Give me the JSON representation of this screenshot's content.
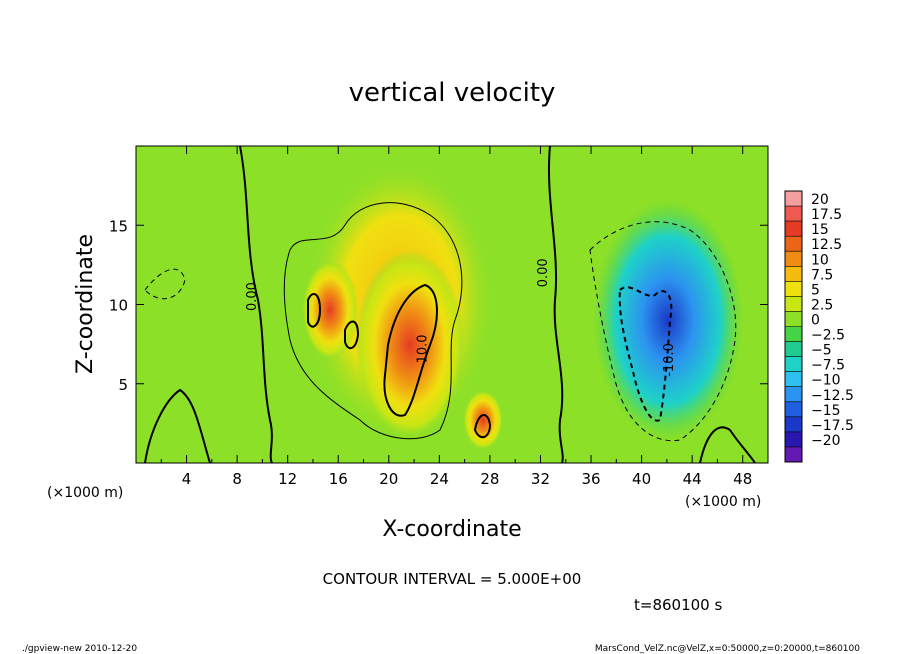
{
  "chart_data": {
    "type": "heatmap",
    "title": "vertical velocity",
    "xlabel": "X-coordinate",
    "ylabel": "Z-coordinate",
    "x_unit_label": "(×1000 m)",
    "y_unit_label": "(×1000 m)",
    "xlim": [
      0,
      50
    ],
    "ylim": [
      0,
      20
    ],
    "x_ticks": [
      4,
      8,
      12,
      16,
      20,
      24,
      28,
      32,
      36,
      40,
      44,
      48
    ],
    "y_ticks": [
      5,
      10,
      15
    ],
    "colorbar": {
      "levels": [
        "20",
        "17.5",
        "15",
        "12.5",
        "10",
        "7.5",
        "5",
        "2.5",
        "0",
        "−2.5",
        "−5",
        "−7.5",
        "−10",
        "−12.5",
        "−15",
        "−17.5",
        "−20"
      ],
      "colors": [
        "#f5a0a0",
        "#ee5a50",
        "#e63c24",
        "#ec6418",
        "#f08c14",
        "#f5bc10",
        "#f0e010",
        "#c8e614",
        "#8ce028",
        "#46d446",
        "#20cc90",
        "#1ed2c8",
        "#30c0f0",
        "#2c94f0",
        "#2060e0",
        "#1c38c8",
        "#2818b0",
        "#6418b4"
      ]
    },
    "contour_labels": [
      {
        "text": "0.00",
        "x": 9.5,
        "z": 10.5
      },
      {
        "text": "0.00",
        "x": 32.5,
        "z": 12.0
      },
      {
        "text": "10.0",
        "x": 23.0,
        "z": 7.2
      },
      {
        "text": "-10.0",
        "x": 42.5,
        "z": 6.5
      }
    ],
    "contour_interval_text": "CONTOUR INTERVAL = 5.000E+00",
    "time_text": "t=860100 s"
  },
  "footer": {
    "left": "./gpview-new  2010-12-20",
    "right": "MarsCond_VelZ.nc@VelZ,x=0:50000,z=0:20000,t=860100"
  }
}
